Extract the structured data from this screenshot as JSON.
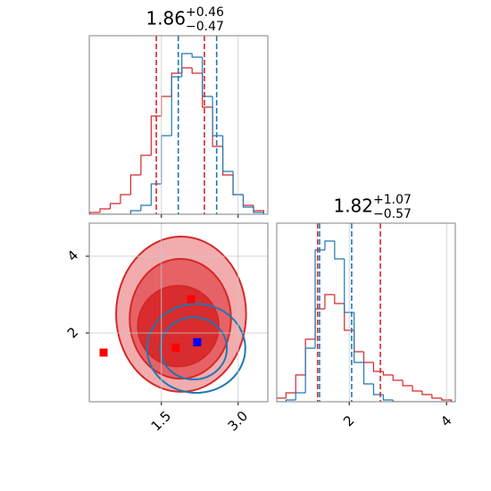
{
  "chart_data": [
    {
      "type": "histogram",
      "title": {
        "value": "1.86",
        "upper": "+0.46",
        "lower": "−0.47"
      },
      "bins": [
        0.1,
        0.3,
        0.5,
        0.7,
        0.9,
        1.1,
        1.3,
        1.5,
        1.7,
        1.9,
        2.1,
        2.3,
        2.5,
        2.7,
        2.9,
        3.1,
        3.3,
        3.5
      ],
      "series": [
        {
          "color": "#d62728",
          "values": [
            1,
            3,
            6,
            11,
            22,
            33,
            55,
            66,
            79,
            82,
            79,
            60,
            38,
            22,
            11,
            5,
            2
          ]
        },
        {
          "color": "#1f77b4",
          "values": [
            0,
            0,
            0,
            0,
            2,
            5,
            17,
            44,
            77,
            90,
            88,
            66,
            44,
            24,
            11,
            4,
            1
          ]
        }
      ],
      "quantiles": [
        {
          "color": "#d62728",
          "x": [
            1.4,
            2.34
          ]
        },
        {
          "color": "#1f77b4",
          "x": [
            1.83,
            2.58
          ]
        }
      ],
      "xlim": [
        0.09,
        3.58
      ],
      "ylim": [
        0,
        100
      ],
      "xticks": [
        1.5,
        3
      ],
      "tick_labels": false,
      "grid": true
    },
    {
      "type": "histogram",
      "title": {
        "value": "1.82",
        "upper": "+1.07",
        "lower": "−0.57"
      },
      "bins": [
        0.5,
        0.7,
        0.9,
        1.1,
        1.3,
        1.5,
        1.7,
        1.9,
        2.1,
        2.3,
        2.5,
        2.7,
        2.9,
        3.1,
        3.3,
        3.5,
        3.7,
        3.9,
        4.1
      ],
      "series": [
        {
          "color": "#d62728",
          "values": [
            2,
            5,
            15,
            35,
            52,
            60,
            55,
            40,
            28,
            22,
            17,
            15,
            12,
            9,
            6,
            4,
            2,
            1
          ]
        },
        {
          "color": "#1f77b4",
          "values": [
            0,
            1,
            5,
            30,
            85,
            90,
            80,
            50,
            22,
            10,
            4,
            1,
            0,
            0,
            0,
            0,
            0,
            0
          ]
        }
      ],
      "quantiles": [
        {
          "color": "#d62728",
          "x": [
            1.35,
            2.64
          ]
        },
        {
          "color": "#1f77b4",
          "x": [
            1.39,
            2.05
          ]
        }
      ],
      "xlim": [
        0.51,
        4.18
      ],
      "ylim": [
        0,
        100
      ],
      "xticks": [
        2,
        4
      ],
      "tick_labels": true,
      "grid": true
    },
    {
      "type": "contour",
      "contours": [
        {
          "color": "#d62728",
          "fill": "#f2a3a5",
          "center": [
            1.885,
            2.49
          ],
          "radii": [
            1.27,
            2.02
          ]
        },
        {
          "color": "#d62728",
          "fill": "#e45a5e",
          "center": [
            1.87,
            2.37
          ],
          "radii": [
            0.99,
            1.56
          ]
        },
        {
          "color": "#d62728",
          "fill": "#d62728",
          "center": [
            1.83,
            2.18
          ],
          "radii": [
            0.79,
            1.05
          ]
        },
        {
          "color": "#1f77b4",
          "center": [
            2.18,
            1.6
          ],
          "radii": [
            0.96,
            1.16
          ]
        },
        {
          "color": "#1f77b4",
          "center": [
            2.13,
            1.6
          ],
          "radii": [
            0.65,
            0.81
          ]
        }
      ],
      "series": [
        {
          "color": "#ff0000",
          "x": [
            0.37,
            2.08,
            1.78
          ],
          "y": [
            1.49,
            2.88,
            1.62
          ]
        },
        {
          "color": "#0000ff",
          "x": [
            2.2
          ],
          "y": [
            1.76
          ]
        }
      ],
      "xlim": [
        0.09,
        3.58
      ],
      "ylim": [
        0.21,
        4.86
      ],
      "xticks": [
        1.5,
        {
          "value": 3,
          "label": "3.0"
        }
      ],
      "yticks": [
        2,
        4
      ],
      "grid": true
    }
  ]
}
